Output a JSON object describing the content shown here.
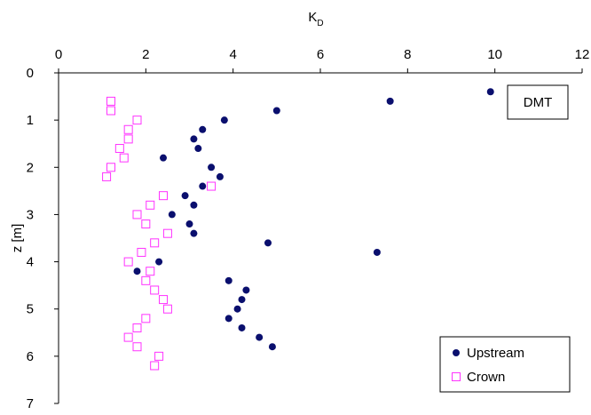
{
  "chart_data": {
    "type": "scatter",
    "title": "",
    "xlabel": {
      "main": "K",
      "sub": "D"
    },
    "ylabel": "z [m]",
    "xlim": [
      0,
      12
    ],
    "ylim": [
      0,
      7
    ],
    "x_ticks": [
      "0",
      "2",
      "4",
      "6",
      "8",
      "10",
      "12"
    ],
    "y_ticks": [
      "0",
      "1",
      "2",
      "3",
      "4",
      "5",
      "6",
      "7"
    ],
    "x_axis_position": "top",
    "y_axis_inverted": true,
    "grid": false,
    "annotation": "DMT",
    "legend_position": "bottom-right",
    "series": [
      {
        "name": "Upstream",
        "marker": "filled-circle",
        "color": "#0a0f6e",
        "points": [
          {
            "x": 9.9,
            "y": 0.4
          },
          {
            "x": 7.6,
            "y": 0.6
          },
          {
            "x": 5.0,
            "y": 0.8
          },
          {
            "x": 3.8,
            "y": 1.0
          },
          {
            "x": 3.3,
            "y": 1.2
          },
          {
            "x": 3.1,
            "y": 1.4
          },
          {
            "x": 3.2,
            "y": 1.6
          },
          {
            "x": 2.4,
            "y": 1.8
          },
          {
            "x": 3.5,
            "y": 2.0
          },
          {
            "x": 3.7,
            "y": 2.2
          },
          {
            "x": 3.3,
            "y": 2.4
          },
          {
            "x": 2.9,
            "y": 2.6
          },
          {
            "x": 3.1,
            "y": 2.8
          },
          {
            "x": 2.6,
            "y": 3.0
          },
          {
            "x": 3.0,
            "y": 3.2
          },
          {
            "x": 3.1,
            "y": 3.4
          },
          {
            "x": 4.8,
            "y": 3.6
          },
          {
            "x": 7.3,
            "y": 3.8
          },
          {
            "x": 2.3,
            "y": 4.0
          },
          {
            "x": 1.8,
            "y": 4.2
          },
          {
            "x": 3.9,
            "y": 4.4
          },
          {
            "x": 4.3,
            "y": 4.6
          },
          {
            "x": 4.2,
            "y": 4.8
          },
          {
            "x": 4.1,
            "y": 5.0
          },
          {
            "x": 3.9,
            "y": 5.2
          },
          {
            "x": 4.2,
            "y": 5.4
          },
          {
            "x": 4.6,
            "y": 5.6
          },
          {
            "x": 4.9,
            "y": 5.8
          }
        ]
      },
      {
        "name": "Crown",
        "marker": "open-square",
        "color": "#ff33ff",
        "points": [
          {
            "x": 1.2,
            "y": 0.6
          },
          {
            "x": 1.2,
            "y": 0.8
          },
          {
            "x": 1.8,
            "y": 1.0
          },
          {
            "x": 1.6,
            "y": 1.2
          },
          {
            "x": 1.6,
            "y": 1.4
          },
          {
            "x": 1.4,
            "y": 1.6
          },
          {
            "x": 1.5,
            "y": 1.8
          },
          {
            "x": 1.2,
            "y": 2.0
          },
          {
            "x": 1.1,
            "y": 2.2
          },
          {
            "x": 3.5,
            "y": 2.4
          },
          {
            "x": 2.4,
            "y": 2.6
          },
          {
            "x": 2.1,
            "y": 2.8
          },
          {
            "x": 1.8,
            "y": 3.0
          },
          {
            "x": 2.0,
            "y": 3.2
          },
          {
            "x": 2.5,
            "y": 3.4
          },
          {
            "x": 2.2,
            "y": 3.6
          },
          {
            "x": 1.9,
            "y": 3.8
          },
          {
            "x": 1.6,
            "y": 4.0
          },
          {
            "x": 2.1,
            "y": 4.2
          },
          {
            "x": 2.0,
            "y": 4.4
          },
          {
            "x": 2.2,
            "y": 4.6
          },
          {
            "x": 2.4,
            "y": 4.8
          },
          {
            "x": 2.5,
            "y": 5.0
          },
          {
            "x": 2.0,
            "y": 5.2
          },
          {
            "x": 1.8,
            "y": 5.4
          },
          {
            "x": 1.6,
            "y": 5.6
          },
          {
            "x": 1.8,
            "y": 5.8
          },
          {
            "x": 2.3,
            "y": 6.0
          },
          {
            "x": 2.2,
            "y": 6.2
          }
        ]
      }
    ]
  }
}
